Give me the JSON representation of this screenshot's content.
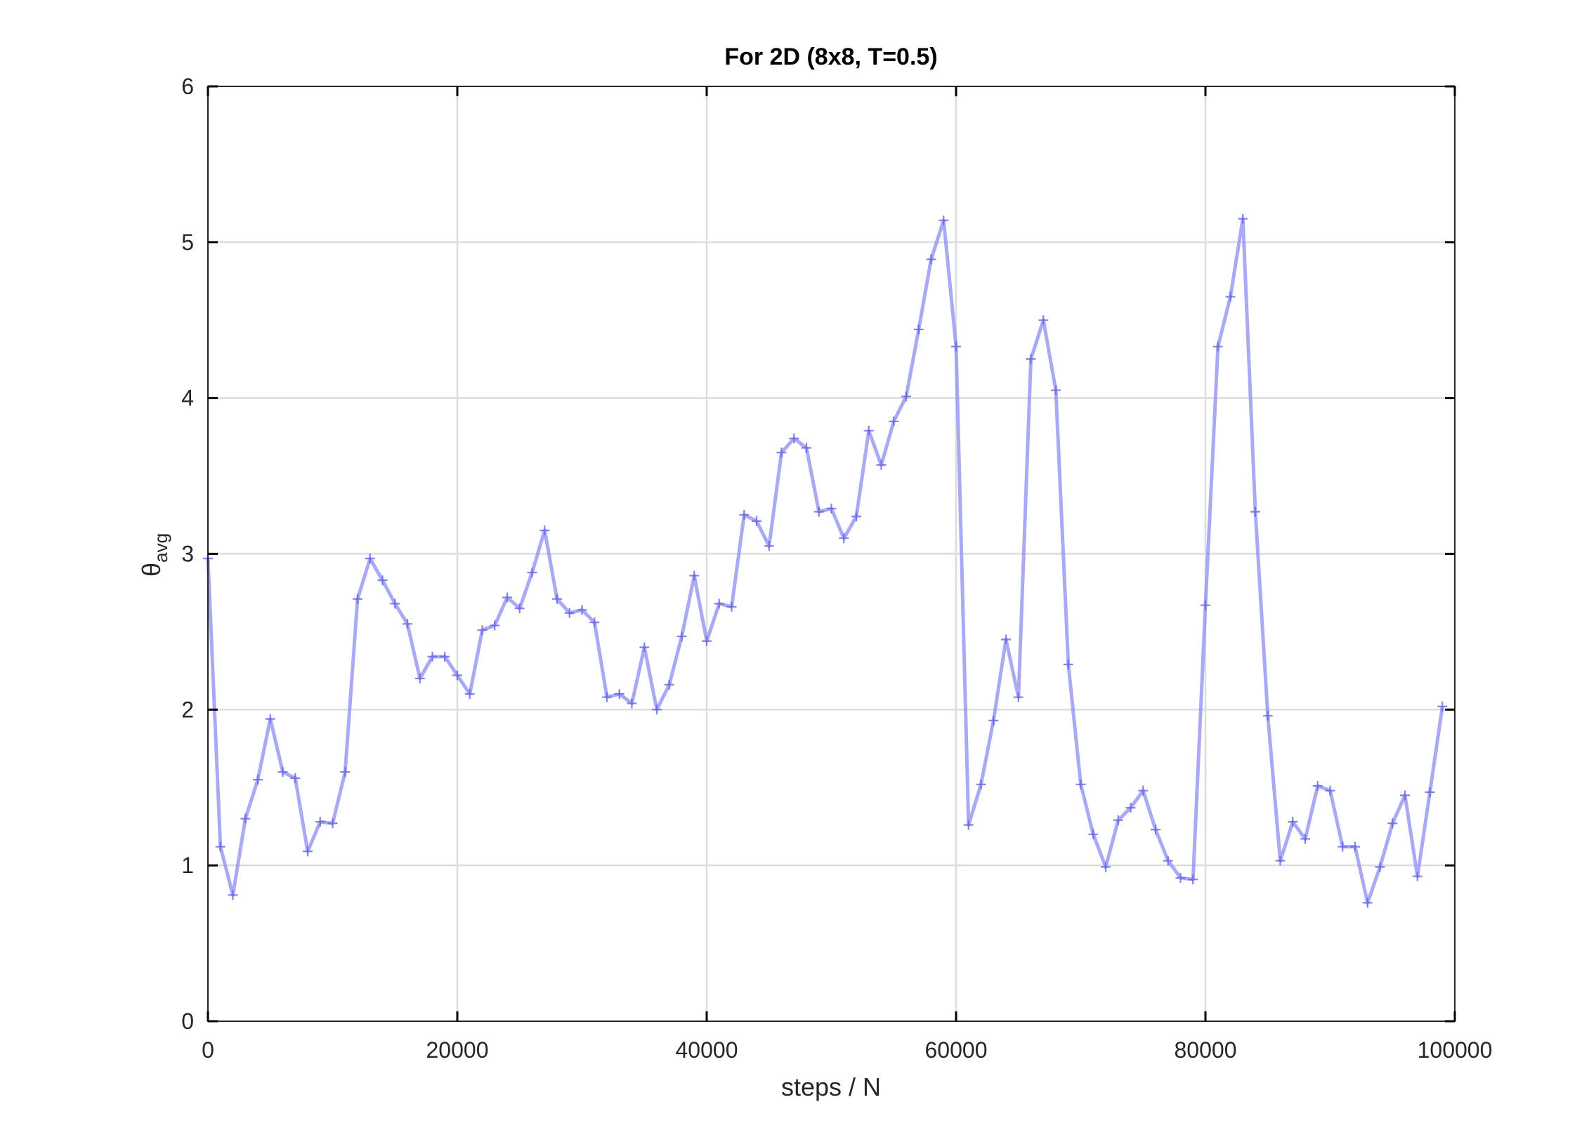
{
  "chart_data": {
    "type": "line",
    "title": "For 2D (8x8, T=0.5)",
    "xlabel": "steps / N",
    "ylabel_base": "θ",
    "ylabel_sub": "avg",
    "xlim": [
      0,
      100000
    ],
    "ylim": [
      0,
      6
    ],
    "xticks": [
      0,
      20000,
      40000,
      60000,
      80000,
      100000
    ],
    "yticks": [
      0,
      1,
      2,
      3,
      4,
      5,
      6
    ],
    "grid": true,
    "line_color": "#8c8cf2",
    "marker_color": "#6464e6",
    "marker": "plus",
    "x": [
      0,
      1000,
      2000,
      3000,
      4000,
      5000,
      6000,
      7000,
      8000,
      9000,
      10000,
      11000,
      12000,
      13000,
      14000,
      15000,
      16000,
      17000,
      18000,
      19000,
      20000,
      21000,
      22000,
      23000,
      24000,
      25000,
      26000,
      27000,
      28000,
      29000,
      30000,
      31000,
      32000,
      33000,
      34000,
      35000,
      36000,
      37000,
      38000,
      39000,
      40000,
      41000,
      42000,
      43000,
      44000,
      45000,
      46000,
      47000,
      48000,
      49000,
      50000,
      51000,
      52000,
      53000,
      54000,
      55000,
      56000,
      57000,
      58000,
      59000,
      60000,
      61000,
      62000,
      63000,
      64000,
      65000,
      66000,
      67000,
      68000,
      69000,
      70000,
      71000,
      72000,
      73000,
      74000,
      75000,
      76000,
      77000,
      78000,
      79000,
      80000,
      81000,
      82000,
      83000,
      84000,
      85000,
      86000,
      87000,
      88000,
      89000,
      90000,
      91000,
      92000,
      93000,
      94000,
      95000,
      96000,
      97000,
      98000,
      99000
    ],
    "y": [
      2.97,
      1.12,
      0.81,
      1.3,
      1.55,
      1.94,
      1.6,
      1.56,
      1.09,
      1.28,
      1.27,
      1.6,
      2.71,
      2.97,
      2.83,
      2.68,
      2.55,
      2.2,
      2.34,
      2.34,
      2.22,
      2.1,
      2.51,
      2.54,
      2.72,
      2.65,
      2.88,
      3.15,
      2.71,
      2.62,
      2.64,
      2.56,
      2.08,
      2.1,
      2.04,
      2.4,
      2.0,
      2.16,
      2.47,
      2.86,
      2.44,
      2.68,
      2.66,
      3.25,
      3.21,
      3.05,
      3.65,
      3.74,
      3.68,
      3.27,
      3.29,
      3.1,
      3.24,
      3.79,
      3.57,
      3.85,
      4.01,
      4.44,
      4.89,
      5.14,
      4.33,
      1.26,
      1.52,
      1.93,
      2.45,
      2.08,
      4.25,
      4.5,
      4.05,
      2.29,
      1.52,
      1.2,
      0.99,
      1.29,
      1.37,
      1.48,
      1.23,
      1.03,
      0.92,
      0.91,
      2.67,
      4.33,
      4.65,
      5.15,
      3.27,
      1.96,
      1.03,
      1.28,
      1.17,
      1.51,
      1.48,
      1.12,
      1.12,
      0.76,
      0.99,
      1.27,
      1.45,
      0.93,
      1.47,
      2.02
    ]
  }
}
